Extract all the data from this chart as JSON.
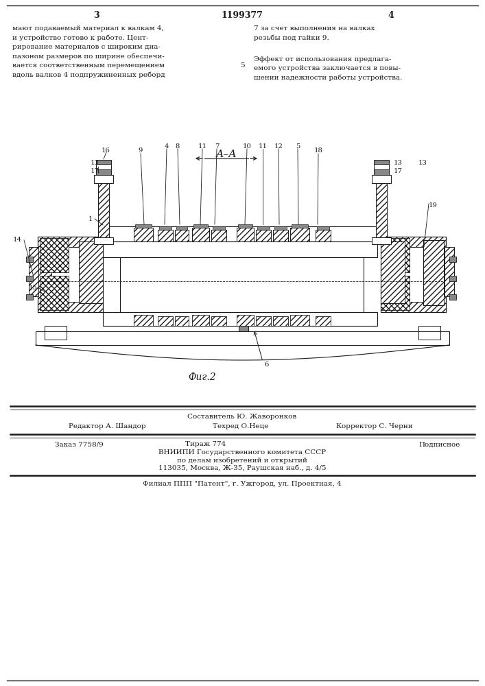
{
  "page_number_left": "3",
  "page_number_center": "1199377",
  "page_number_right": "4",
  "text_left_lines": [
    "мают подаваемый материал к валкам 4,",
    "и устройство готово к работе. Цент-",
    "рирование материалов с широким диа-",
    "пазоном размеров по ширине обеспечи-",
    "вается соответственным перемещением",
    "вдоль валков 4 подпружиненных реборд"
  ],
  "text_right_lines_1": [
    "7 за счет выполнения на валках",
    "резьбы под гайки 9."
  ],
  "text_right_lines_2": [
    "Эффект от использования предлага-",
    "емого устройства заключается в повы-",
    "шении надежности работы устройства."
  ],
  "line_number": "5",
  "section_label": "А–А",
  "fig_label": "Фиг.2",
  "bg_color": "#ffffff",
  "drawing_color": "#1a1a1a",
  "text_color": "#1a1a1a",
  "footer_editor": "Редактор А. Шандор",
  "footer_techred": "Техред О.Неце",
  "footer_corrector": "Корректор С. Черни",
  "footer_composer": "Составитель Ю. Жаворонков",
  "footer_order": "Заказ 7758/9",
  "footer_tirazh": "Тираж 774",
  "footer_podp": "Подписное",
  "footer_vniip1": "ВНИИПИ Государственного комитета СССР",
  "footer_vniip2": "по делам изобретений и открытий",
  "footer_vniip3": "113035, Москва, Ж-35, Раушская наб., д. 4/5",
  "footer_filial": "Филиал ППП \"Патент\", г. Ужгород, ул. Проектная, 4"
}
